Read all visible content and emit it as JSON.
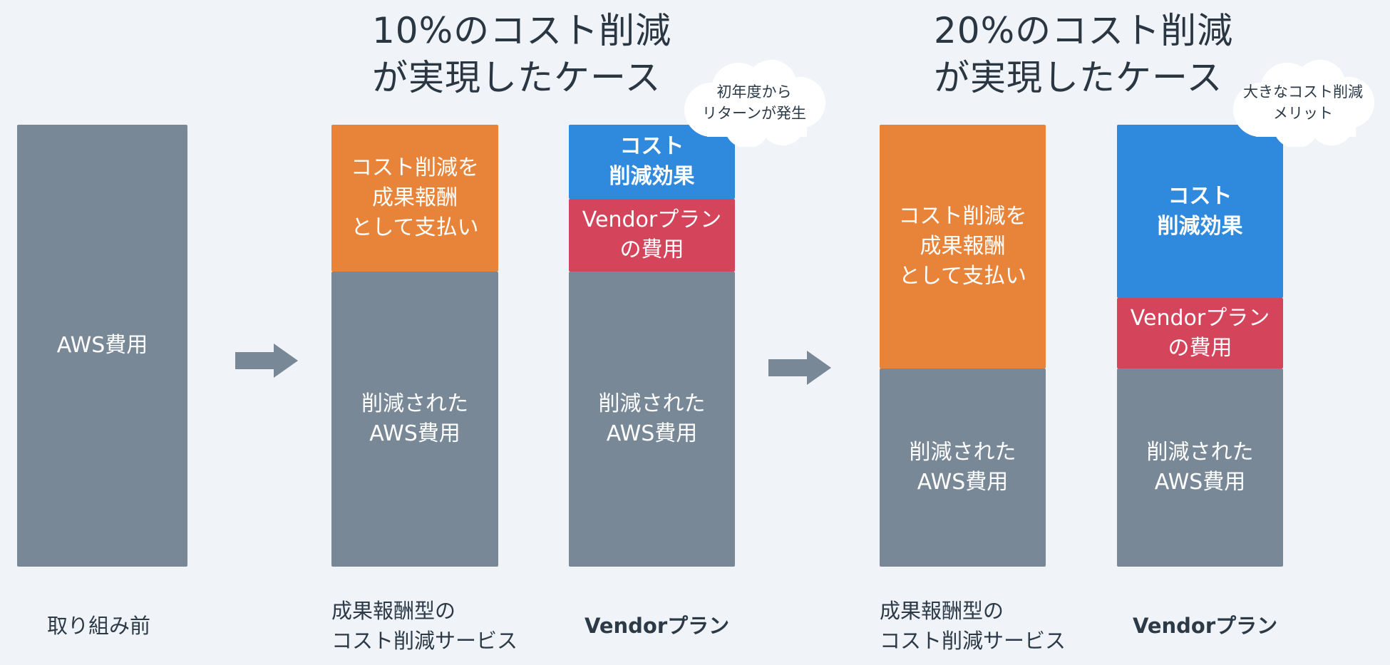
{
  "headings": {
    "left": "10%のコスト削減\nが実現したケース",
    "right": "20%のコスト削減\nが実現したケース"
  },
  "bars": {
    "before": {
      "aws": "AWS費用"
    },
    "case10_success_fee": {
      "fee": "コスト削減を\n成果報酬\nとして支払い",
      "reduced": "削減された\nAWS費用"
    },
    "case10_vendor": {
      "effect": "コスト\n削減効果",
      "plan_cost": "Vendorプラン\nの費用",
      "reduced": "削減された\nAWS費用"
    },
    "case20_success_fee": {
      "fee": "コスト削減を\n成果報酬\nとして支払い",
      "reduced": "削減された\nAWS費用"
    },
    "case20_vendor": {
      "effect": "コスト\n削減効果",
      "plan_cost": "Vendorプラン\nの費用",
      "reduced": "削減された\nAWS費用"
    }
  },
  "callouts": {
    "case10": "初年度から\nリターンが発生",
    "case20": "大きなコスト削減\nメリット"
  },
  "labels": {
    "before": "取り組み前",
    "case10_success_fee": "成果報酬型の\nコスト削減サービス",
    "case10_vendor": "Vendorプラン",
    "case20_success_fee": "成果報酬型の\nコスト削減サービス",
    "case20_vendor": "Vendorプラン"
  },
  "colors": {
    "background": "#f0f3f7",
    "aws_gray": "#788897",
    "success_fee_orange": "#e8843a",
    "vendor_plan_red": "#d4445a",
    "cost_saving_blue": "#2f89dc"
  }
}
